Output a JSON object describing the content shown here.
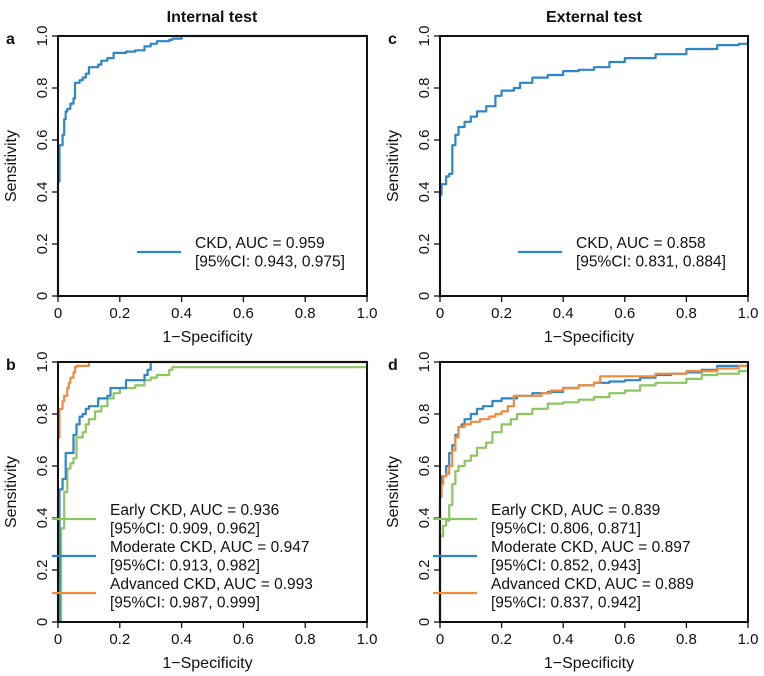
{
  "figure": {
    "column_titles": [
      "Internal test",
      "External test"
    ]
  },
  "chart_data": [
    {
      "panel": "a",
      "type": "line",
      "title": "Internal test",
      "xlabel": "1−Specificity",
      "ylabel": "Sensitivity",
      "xlim": [
        0,
        1
      ],
      "ylim": [
        0,
        1
      ],
      "xticks": [
        "0",
        "0.2",
        "0.4",
        "0.6",
        "0.8",
        "1.0"
      ],
      "yticks": [
        "0",
        "0.2",
        "0.4",
        "0.6",
        "0.8",
        "1.0"
      ],
      "grid": false,
      "legend_position": "bottom-right",
      "series": [
        {
          "name": "CKD",
          "legend": [
            "CKD, AUC = 0.959",
            "[95%CI: 0.943, 0.975]"
          ],
          "auc": 0.959,
          "ci": [
            0.943,
            0.975
          ],
          "color": "#2e86c8",
          "x": [
            0,
            0,
            0.005,
            0.005,
            0.015,
            0.02,
            0.025,
            0.03,
            0.04,
            0.05,
            0.055,
            0.055,
            0.07,
            0.08,
            0.09,
            0.1,
            0.1,
            0.13,
            0.14,
            0.16,
            0.18,
            0.22,
            0.25,
            0.28,
            0.3,
            0.32,
            0.36,
            0.37,
            0.4,
            1.0
          ],
          "y": [
            0,
            0.44,
            0.56,
            0.58,
            0.62,
            0.68,
            0.71,
            0.72,
            0.74,
            0.76,
            0.78,
            0.82,
            0.83,
            0.84,
            0.855,
            0.87,
            0.88,
            0.89,
            0.905,
            0.915,
            0.935,
            0.94,
            0.945,
            0.96,
            0.97,
            0.98,
            0.985,
            0.99,
            1.0,
            1.0
          ]
        }
      ]
    },
    {
      "panel": "c",
      "type": "line",
      "title": "External test",
      "xlabel": "1−Specificity",
      "ylabel": "Sensitivity",
      "xlim": [
        0,
        1
      ],
      "ylim": [
        0,
        1
      ],
      "xticks": [
        "0",
        "0.2",
        "0.4",
        "0.6",
        "0.8",
        "1.0"
      ],
      "yticks": [
        "0",
        "0.2",
        "0.4",
        "0.6",
        "0.8",
        "1.0"
      ],
      "grid": false,
      "legend_position": "bottom-right",
      "series": [
        {
          "name": "CKD",
          "legend": [
            "CKD, AUC = 0.858",
            "[95%CI: 0.831, 0.884]"
          ],
          "auc": 0.858,
          "ci": [
            0.831,
            0.884
          ],
          "color": "#2e86c8",
          "x": [
            0,
            0,
            0.005,
            0.02,
            0.03,
            0.04,
            0.05,
            0.06,
            0.08,
            0.1,
            0.12,
            0.15,
            0.18,
            0.2,
            0.24,
            0.26,
            0.3,
            0.35,
            0.4,
            0.45,
            0.5,
            0.55,
            0.6,
            0.7,
            0.8,
            0.9,
            0.97,
            1.0
          ],
          "y": [
            0,
            0.39,
            0.43,
            0.46,
            0.47,
            0.58,
            0.62,
            0.65,
            0.67,
            0.69,
            0.71,
            0.73,
            0.77,
            0.79,
            0.8,
            0.82,
            0.84,
            0.85,
            0.865,
            0.87,
            0.88,
            0.9,
            0.915,
            0.93,
            0.95,
            0.965,
            0.97,
            0.99
          ]
        }
      ]
    },
    {
      "panel": "b",
      "type": "line",
      "title": "",
      "xlabel": "1−Specificity",
      "ylabel": "Sensitivity",
      "xlim": [
        0,
        1
      ],
      "ylim": [
        0,
        1
      ],
      "xticks": [
        "0",
        "0.2",
        "0.4",
        "0.6",
        "0.8",
        "1.0"
      ],
      "yticks": [
        "0",
        "0.2",
        "0.4",
        "0.6",
        "0.8",
        "1.0"
      ],
      "grid": false,
      "legend_position": "bottom-right",
      "series": [
        {
          "name": "Early CKD",
          "legend": [
            "Early CKD, AUC = 0.936",
            "[95%CI: 0.909, 0.962]"
          ],
          "auc": 0.936,
          "ci": [
            0.909,
            0.962
          ],
          "color": "#8cc660",
          "x": [
            0,
            0.01,
            0.01,
            0.02,
            0.02,
            0.03,
            0.04,
            0.05,
            0.06,
            0.06,
            0.08,
            0.09,
            0.1,
            0.12,
            0.14,
            0.16,
            0.18,
            0.2,
            0.25,
            0.28,
            0.3,
            0.32,
            0.36,
            0.37,
            1.0
          ],
          "y": [
            0,
            0.24,
            0.36,
            0.42,
            0.5,
            0.59,
            0.61,
            0.63,
            0.66,
            0.71,
            0.73,
            0.76,
            0.78,
            0.81,
            0.83,
            0.86,
            0.88,
            0.9,
            0.91,
            0.93,
            0.94,
            0.95,
            0.97,
            0.98,
            1.0
          ]
        },
        {
          "name": "Moderate CKD",
          "legend": [
            "Moderate CKD, AUC = 0.947",
            "[95%CI: 0.913, 0.982]"
          ],
          "auc": 0.947,
          "ci": [
            0.913,
            0.982
          ],
          "color": "#2e86c8",
          "x": [
            0,
            0.005,
            0.005,
            0.015,
            0.025,
            0.025,
            0.05,
            0.05,
            0.06,
            0.07,
            0.08,
            0.09,
            0.1,
            0.13,
            0.13,
            0.16,
            0.17,
            0.22,
            0.22,
            0.28,
            0.29,
            0.3,
            0.3,
            1.0
          ],
          "y": [
            0,
            0.41,
            0.51,
            0.55,
            0.58,
            0.65,
            0.66,
            0.72,
            0.76,
            0.79,
            0.8,
            0.82,
            0.83,
            0.84,
            0.86,
            0.87,
            0.9,
            0.9,
            0.93,
            0.95,
            0.97,
            0.98,
            1.0,
            1.0
          ]
        },
        {
          "name": "Advanced CKD",
          "legend": [
            "Advanced CKD, AUC = 0.993",
            "[95%CI: 0.987, 0.999]"
          ],
          "auc": 0.993,
          "ci": [
            0.987,
            0.999
          ],
          "color": "#f08a3c",
          "x": [
            0,
            0,
            0.005,
            0.005,
            0.015,
            0.02,
            0.03,
            0.035,
            0.04,
            0.05,
            0.055,
            0.06,
            0.1,
            0.1,
            1.0
          ],
          "y": [
            0,
            0.71,
            0.8,
            0.82,
            0.85,
            0.87,
            0.9,
            0.92,
            0.94,
            0.96,
            0.98,
            0.985,
            0.99,
            1.0,
            1.0
          ]
        }
      ]
    },
    {
      "panel": "d",
      "type": "line",
      "title": "",
      "xlabel": "1−Specificity",
      "ylabel": "Sensitivity",
      "xlim": [
        0,
        1
      ],
      "ylim": [
        0,
        1
      ],
      "xticks": [
        "0",
        "0.2",
        "0.4",
        "0.6",
        "0.8",
        "1.0"
      ],
      "yticks": [
        "0",
        "0.2",
        "0.4",
        "0.6",
        "0.8",
        "1.0"
      ],
      "grid": false,
      "legend_position": "bottom-right",
      "series": [
        {
          "name": "Early CKD",
          "legend": [
            "Early CKD, AUC = 0.839",
            "[95%CI: 0.806, 0.871]"
          ],
          "auc": 0.839,
          "ci": [
            0.806,
            0.871
          ],
          "color": "#8cc660",
          "x": [
            0,
            0,
            0.01,
            0.02,
            0.03,
            0.04,
            0.05,
            0.06,
            0.08,
            0.1,
            0.12,
            0.15,
            0.17,
            0.2,
            0.23,
            0.25,
            0.3,
            0.35,
            0.4,
            0.45,
            0.5,
            0.55,
            0.6,
            0.65,
            0.7,
            0.8,
            0.85,
            0.9,
            0.97,
            1.0
          ],
          "y": [
            0,
            0.33,
            0.37,
            0.39,
            0.45,
            0.53,
            0.58,
            0.6,
            0.62,
            0.64,
            0.67,
            0.69,
            0.73,
            0.76,
            0.78,
            0.8,
            0.82,
            0.84,
            0.845,
            0.855,
            0.865,
            0.88,
            0.89,
            0.91,
            0.92,
            0.935,
            0.95,
            0.955,
            0.965,
            0.99
          ]
        },
        {
          "name": "Moderate CKD",
          "legend": [
            "Moderate CKD, AUC = 0.897",
            "[95%CI: 0.852, 0.943]"
          ],
          "auc": 0.897,
          "ci": [
            0.852,
            0.943
          ],
          "color": "#2e86c8",
          "x": [
            0,
            0,
            0.005,
            0.02,
            0.03,
            0.04,
            0.05,
            0.06,
            0.07,
            0.08,
            0.1,
            0.12,
            0.14,
            0.17,
            0.2,
            0.25,
            0.3,
            0.35,
            0.4,
            0.45,
            0.5,
            0.55,
            0.6,
            0.65,
            0.7,
            0.75,
            0.8,
            0.85,
            0.9,
            1.0
          ],
          "y": [
            0,
            0.5,
            0.56,
            0.6,
            0.65,
            0.68,
            0.72,
            0.75,
            0.76,
            0.78,
            0.8,
            0.82,
            0.83,
            0.85,
            0.86,
            0.87,
            0.88,
            0.885,
            0.9,
            0.91,
            0.92,
            0.925,
            0.93,
            0.94,
            0.95,
            0.955,
            0.96,
            0.97,
            0.985,
            0.99
          ]
        },
        {
          "name": "Advanced CKD",
          "legend": [
            "Advanced CKD, AUC = 0.889",
            "[95%CI: 0.837, 0.942]"
          ],
          "auc": 0.889,
          "ci": [
            0.837,
            0.942
          ],
          "color": "#f08a3c",
          "x": [
            0,
            0,
            0.005,
            0.01,
            0.02,
            0.03,
            0.04,
            0.05,
            0.06,
            0.08,
            0.1,
            0.13,
            0.16,
            0.18,
            0.2,
            0.22,
            0.24,
            0.3,
            0.33,
            0.36,
            0.4,
            0.45,
            0.5,
            0.52,
            0.55,
            0.6,
            0.7,
            0.8,
            0.9,
            0.97,
            1.0
          ],
          "y": [
            0,
            0.48,
            0.53,
            0.56,
            0.57,
            0.6,
            0.66,
            0.71,
            0.75,
            0.76,
            0.77,
            0.78,
            0.79,
            0.8,
            0.81,
            0.83,
            0.87,
            0.87,
            0.88,
            0.89,
            0.9,
            0.91,
            0.92,
            0.945,
            0.945,
            0.945,
            0.955,
            0.965,
            0.975,
            0.985,
            0.99
          ]
        }
      ]
    }
  ]
}
